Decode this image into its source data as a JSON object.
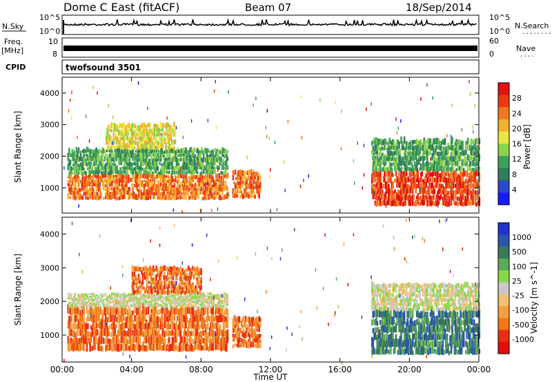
{
  "header": {
    "radar": "Dome C East (fitACF)",
    "beam": "Beam 07",
    "date": "18/Sep/2014"
  },
  "panels": {
    "nsky": {
      "left_label": "N.Sky",
      "left_ticks": [
        "10^5",
        "10^0"
      ],
      "right_label": "N.Search",
      "right_ticks": [
        "10^5",
        "10^0"
      ],
      "legend_line": "........"
    },
    "freq": {
      "left_label_1": "Freq.",
      "left_label_2": "[MHz]",
      "left_ticks": [
        "10",
        "8"
      ],
      "right_label": "Nave",
      "right_ticks": [
        "60",
        "0"
      ],
      "legend_line": "...."
    },
    "cpid": {
      "label": "CPID",
      "program": "twofsound 3501"
    }
  },
  "chart_data": [
    {
      "type": "heatmap",
      "parameter": "Power",
      "ylabel": "Slant Range [km]",
      "yticks": [
        "1000",
        "2000",
        "3000",
        "4000"
      ],
      "ylim": [
        200,
        4500
      ],
      "xlim": [
        0,
        24
      ],
      "colorbar": {
        "label": "Power [dB]",
        "ticks": [
          "4",
          "8",
          "12",
          "16",
          "20",
          "24",
          "28"
        ],
        "range": [
          0,
          32
        ],
        "colors": [
          "#1a1aff",
          "#2a4ac8",
          "#2f7f5a",
          "#3fa05a",
          "#8bd24a",
          "#e8e840",
          "#f5b030",
          "#f07820",
          "#e83a10",
          "#e01010"
        ]
      },
      "regions": [
        {
          "t": [
            0.3,
            9.5
          ],
          "r": [
            600,
            1400
          ],
          "power_db": 26
        },
        {
          "t": [
            0.3,
            9.5
          ],
          "r": [
            1400,
            2200
          ],
          "power_db": 12
        },
        {
          "t": [
            2.5,
            6.5
          ],
          "r": [
            2200,
            3000
          ],
          "power_db": 16
        },
        {
          "t": [
            9.8,
            11.4
          ],
          "r": [
            650,
            1500
          ],
          "power_db": 24
        },
        {
          "t": [
            17.8,
            24.0
          ],
          "r": [
            400,
            1500
          ],
          "power_db": 28
        },
        {
          "t": [
            17.8,
            24.0
          ],
          "r": [
            1500,
            2500
          ],
          "power_db": 12
        }
      ]
    },
    {
      "type": "heatmap",
      "parameter": "Velocity",
      "ylabel": "Slant Range [km]",
      "yticks": [
        "1000",
        "2000",
        "3000",
        "4000"
      ],
      "ylim": [
        200,
        4500
      ],
      "xlim": [
        0,
        24
      ],
      "xticks": [
        "00:00",
        "04:00",
        "08:00",
        "12:00",
        "16:00",
        "20:00",
        "00:00"
      ],
      "xlabel": "Time UT",
      "colorbar": {
        "label": "Velocity [m s^-1]",
        "ticks": [
          "1000",
          "500",
          "100",
          "25",
          "-25",
          "-100",
          "-500",
          "-1000"
        ],
        "colors": [
          "#2233cc",
          "#2a55aa",
          "#3a7a5a",
          "#5aaa5a",
          "#88d84a",
          "#c8c8c8",
          "#f0c070",
          "#f5a040",
          "#f07818",
          "#e83010",
          "#e01010"
        ]
      },
      "regions": [
        {
          "t": [
            0.3,
            9.5
          ],
          "r": [
            500,
            1800
          ],
          "velocity": -100
        },
        {
          "t": [
            0.3,
            9.5
          ],
          "r": [
            1800,
            2200
          ],
          "velocity": 0
        },
        {
          "t": [
            4.0,
            8.0
          ],
          "r": [
            2200,
            3000
          ],
          "velocity": -300
        },
        {
          "t": [
            9.8,
            11.4
          ],
          "r": [
            600,
            1500
          ],
          "velocity": -100
        },
        {
          "t": [
            17.8,
            24.0
          ],
          "r": [
            400,
            1700
          ],
          "velocity": 200
        },
        {
          "t": [
            17.8,
            24.0
          ],
          "r": [
            1700,
            2500
          ],
          "velocity": 25
        }
      ]
    }
  ]
}
